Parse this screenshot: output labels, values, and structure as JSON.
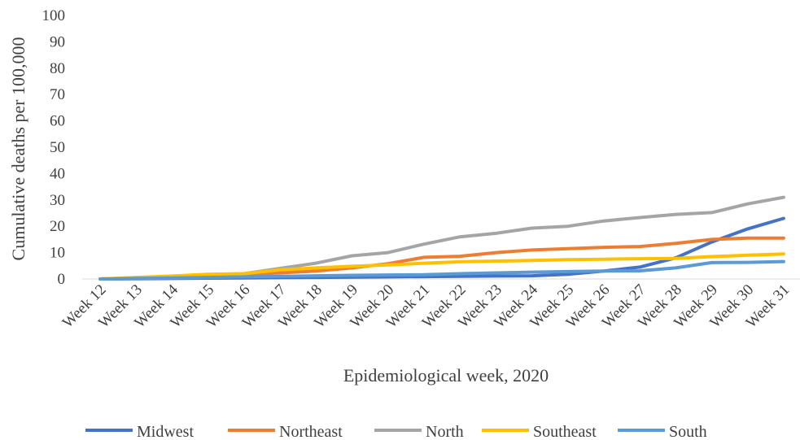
{
  "chart_data": {
    "type": "line",
    "title": "",
    "xlabel": "Epidemiological week, 2020",
    "ylabel": "Cumulative deaths per 100,000",
    "ylim": [
      0,
      100
    ],
    "yticks": [
      0,
      10,
      20,
      30,
      40,
      50,
      60,
      70,
      80,
      90,
      100
    ],
    "grid": false,
    "legend": "bottom",
    "categories": [
      "Week 12",
      "Week 13",
      "Week 14",
      "Week 15",
      "Week 16",
      "Week 17",
      "Week 18",
      "Week 19",
      "Week 20",
      "Week 21",
      "Week 22",
      "Week 23",
      "Week 24",
      "Week 25",
      "Week 26",
      "Week 27",
      "Week 28",
      "Week 29",
      "Week 30",
      "Week 31"
    ],
    "series": [
      {
        "name": "Midwest",
        "color": "#4472C4",
        "values": [
          0,
          0.1,
          0.2,
          0.3,
          0.4,
          0.5,
          0.6,
          0.7,
          0.8,
          0.9,
          1.0,
          1.1,
          1.2,
          1.8,
          3.0,
          4.5,
          8.0,
          14.0,
          19.0,
          23.0
        ]
      },
      {
        "name": "Northeast",
        "color": "#ED7D31",
        "values": [
          0,
          0.3,
          0.8,
          1.3,
          1.7,
          2.3,
          3.0,
          4.2,
          5.8,
          8.2,
          8.6,
          10.0,
          11.0,
          11.5,
          12.0,
          12.3,
          13.5,
          15.0,
          15.5,
          15.5
        ]
      },
      {
        "name": "North",
        "color": "#A5A5A5",
        "values": [
          0,
          0.5,
          1.0,
          1.6,
          2.0,
          4.0,
          6.0,
          8.8,
          10.0,
          13.2,
          16.0,
          17.3,
          19.3,
          20.0,
          22.0,
          23.3,
          24.5,
          25.2,
          28.5,
          31.0
        ]
      },
      {
        "name": "Southeast",
        "color": "#FFC000",
        "values": [
          0,
          0.6,
          1.1,
          1.8,
          2.0,
          3.5,
          4.2,
          4.8,
          5.3,
          6.0,
          6.5,
          6.8,
          7.0,
          7.3,
          7.5,
          7.7,
          7.8,
          8.5,
          9.0,
          9.5
        ]
      },
      {
        "name": "South",
        "color": "#5B9BD5",
        "values": [
          0,
          0.2,
          0.4,
          0.6,
          0.8,
          1.0,
          1.2,
          1.4,
          1.5,
          1.6,
          2.0,
          2.3,
          2.6,
          2.8,
          3.0,
          3.1,
          4.2,
          6.2,
          6.3,
          6.6
        ]
      }
    ]
  }
}
